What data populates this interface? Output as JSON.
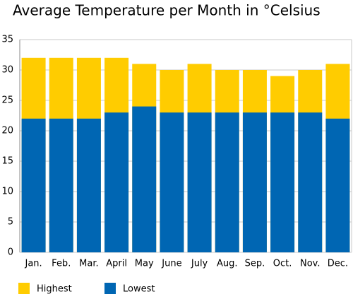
{
  "chart_data": {
    "type": "bar",
    "title": "Average Temperature per Month in °Celsius",
    "categories": [
      "Jan.",
      "Feb.",
      "Mar.",
      "April",
      "May",
      "June",
      "July",
      "Aug.",
      "Sep.",
      "Oct.",
      "Nov.",
      "Dec."
    ],
    "series": [
      {
        "name": "Highest",
        "color": "#ffcc00",
        "values": [
          32,
          32,
          32,
          32,
          31,
          30,
          31,
          30,
          30,
          29,
          30,
          31
        ]
      },
      {
        "name": "Lowest",
        "color": "#0066b3",
        "values": [
          22,
          22,
          22,
          23,
          24,
          23,
          23,
          23,
          23,
          23,
          23,
          22
        ]
      }
    ],
    "ylim": [
      0,
      35
    ],
    "yticks": [
      0,
      5,
      10,
      15,
      20,
      25,
      30,
      35
    ],
    "grid": true
  }
}
